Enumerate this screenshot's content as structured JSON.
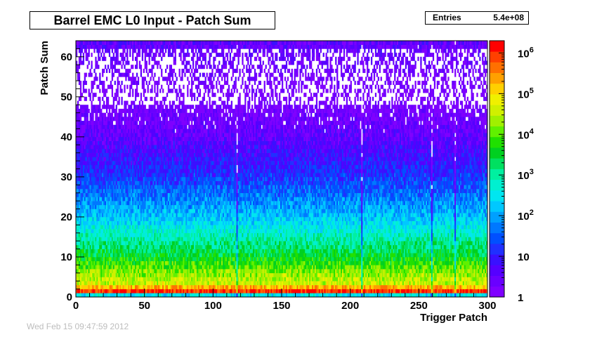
{
  "stats": {
    "entries_label": "Entries",
    "entries_value": "5.4e+08"
  },
  "watermark": "Wed Feb 15 09:47:59 2012",
  "chart_data": {
    "type": "heatmap",
    "title": "Barrel EMC L0 Input - Patch Sum",
    "xlabel": "Trigger Patch",
    "ylabel": "Patch Sum",
    "xlim": [
      0,
      300
    ],
    "ylim": [
      0,
      64
    ],
    "x_ticks": [
      0,
      50,
      100,
      150,
      200,
      250,
      300
    ],
    "y_ticks": [
      0,
      10,
      20,
      30,
      40,
      50,
      60
    ],
    "z_scale": "log",
    "z_range": [
      1,
      2000000
    ],
    "z_ticks": [
      {
        "value": 1,
        "base": "1",
        "exp": ""
      },
      {
        "value": 10,
        "base": "10",
        "exp": ""
      },
      {
        "value": 100,
        "base": "10",
        "exp": "2"
      },
      {
        "value": 1000,
        "base": "10",
        "exp": "3"
      },
      {
        "value": 10000,
        "base": "10",
        "exp": "4"
      },
      {
        "value": 100000,
        "base": "10",
        "exp": "5"
      },
      {
        "value": 1000000,
        "base": "10",
        "exp": "6"
      }
    ],
    "palette": [
      "#7f00ff",
      "#6a00ff",
      "#5500ff",
      "#3a10ff",
      "#2030ff",
      "#0050ff",
      "#0078ff",
      "#00a0ff",
      "#00c8ff",
      "#00e6f0",
      "#00f0d0",
      "#00f0a0",
      "#00e060",
      "#00d020",
      "#20e000",
      "#60f000",
      "#a0f000",
      "#d0f000",
      "#f0f000",
      "#ffd000",
      "#ffa000",
      "#ff7000",
      "#ff4000",
      "#ff0000"
    ],
    "typical_counts_by_patch_sum": [
      {
        "patch_sum": 0,
        "count": 300
      },
      {
        "patch_sum": 1,
        "count": 1000000
      },
      {
        "patch_sum": 3,
        "count": 40000
      },
      {
        "patch_sum": 6,
        "count": 15000
      },
      {
        "patch_sum": 10,
        "count": 3000
      },
      {
        "patch_sum": 20,
        "count": 150
      },
      {
        "patch_sum": 30,
        "count": 15
      },
      {
        "patch_sum": 40,
        "count": 3
      },
      {
        "patch_sum": 50,
        "count": 1
      },
      {
        "patch_sum": 63,
        "count": 3
      }
    ],
    "low_patches": [
      117,
      208,
      259,
      276
    ],
    "grid": false
  }
}
